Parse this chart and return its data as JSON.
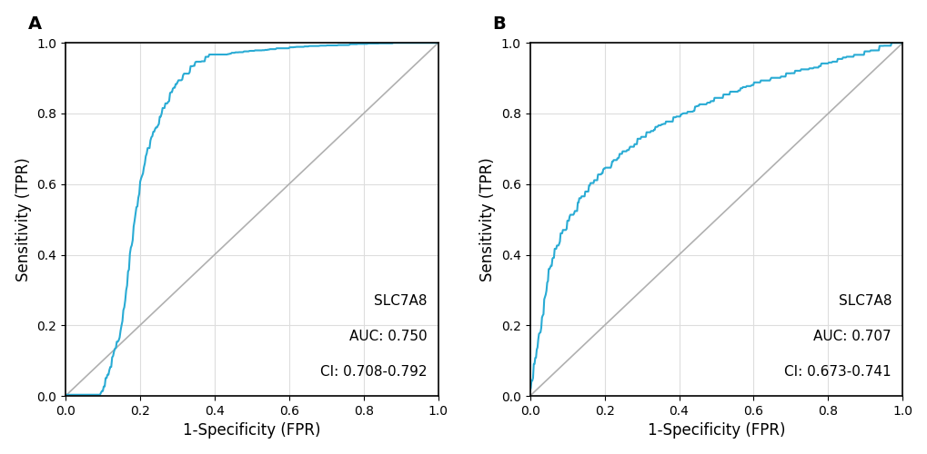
{
  "panel_A": {
    "label": "A",
    "auc": 0.75,
    "ci": "0.708-0.792",
    "gene": "SLC7A8",
    "xlabel": "1-Specificity (FPR)",
    "ylabel": "Sensitivity (TPR)"
  },
  "panel_B": {
    "label": "B",
    "auc": 0.707,
    "ci": "0.673-0.741",
    "gene": "SLC7A8",
    "xlabel": "1-Specificity (FPR)",
    "ylabel": "Sensitivity (TPR)"
  },
  "roc_color": "#29ABD4",
  "diagonal_color": "#B0B0B0",
  "background_color": "#FFFFFF",
  "grid_color": "#DDDDDD",
  "line_width": 1.5,
  "diagonal_lw": 1.2,
  "annotation_fontsize": 11,
  "label_fontsize": 12,
  "tick_fontsize": 10,
  "panel_label_fontsize": 14
}
